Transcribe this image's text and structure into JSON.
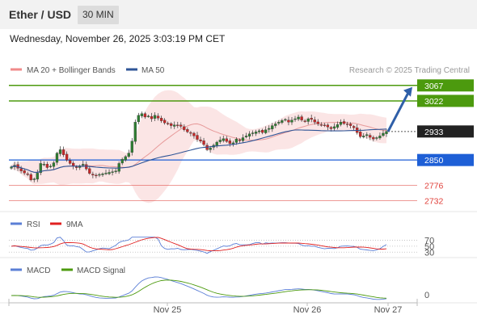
{
  "header": {
    "title": "Ether / USD",
    "interval": "30 MIN"
  },
  "datetime": "Wednesday, November 26, 2025 3:03:19 PM CET",
  "legend": {
    "bollinger": "MA 20 + Bollinger Bands",
    "ma50": "MA 50"
  },
  "credit": "Research © 2025 Trading Central",
  "colors": {
    "up": "#2e7d32",
    "down": "#c62828",
    "resistance": "#4c9a0e",
    "support": "#1e5fd6",
    "level": "#e0403a",
    "ma50": "#2f5597",
    "bands": "#f7c6c6"
  },
  "chart_data": [
    {
      "type": "candlestick",
      "ylim": [
        2700,
        3090
      ],
      "current_price": 2933,
      "levels": [
        {
          "label": "3067",
          "value": 3067,
          "kind": "resistance"
        },
        {
          "label": "3022",
          "value": 3022,
          "kind": "resistance"
        },
        {
          "label": "2933",
          "value": 2933,
          "kind": "current"
        },
        {
          "label": "2850",
          "value": 2850,
          "kind": "support"
        },
        {
          "label": "2776",
          "value": 2776,
          "kind": "level"
        },
        {
          "label": "2732",
          "value": 2732,
          "kind": "level"
        }
      ],
      "x_ticks": [
        "Nov 25",
        "Nov 26",
        "Nov 27"
      ],
      "closes": [
        2830,
        2835,
        2826,
        2818,
        2812,
        2808,
        2792,
        2795,
        2812,
        2840,
        2838,
        2828,
        2832,
        2842,
        2870,
        2880,
        2865,
        2850,
        2840,
        2832,
        2828,
        2833,
        2838,
        2824,
        2811,
        2806,
        2805,
        2808,
        2810,
        2812,
        2814,
        2816,
        2818,
        2840,
        2852,
        2860,
        2870,
        2905,
        2960,
        2980,
        2985,
        2975,
        2978,
        2970,
        2980,
        2972,
        2964,
        2958,
        2955,
        2950,
        2952,
        2950,
        2948,
        2938,
        2932,
        2928,
        2920,
        2910,
        2905,
        2895,
        2880,
        2885,
        2893,
        2902,
        2908,
        2912,
        2904,
        2898,
        2900,
        2911,
        2906,
        2915,
        2920,
        2926,
        2929,
        2932,
        2935,
        2930,
        2938,
        2942,
        2950,
        2955,
        2960,
        2965,
        2968,
        2960,
        2966,
        2970,
        2975,
        2966,
        2962,
        2970,
        2968,
        2960,
        2955,
        2952,
        2950,
        2946,
        2941,
        2947,
        2953,
        2960,
        2956,
        2954,
        2950,
        2944,
        2930,
        2918,
        2920,
        2924,
        2916,
        2911,
        2915,
        2920,
        2928,
        2933
      ],
      "rsi": {
        "levels": [
          70,
          50,
          30
        ],
        "names": [
          "RSI",
          "9MA"
        ]
      },
      "macd": {
        "zero_label": "0",
        "names": [
          "MACD",
          "MACD Signal"
        ]
      }
    }
  ]
}
